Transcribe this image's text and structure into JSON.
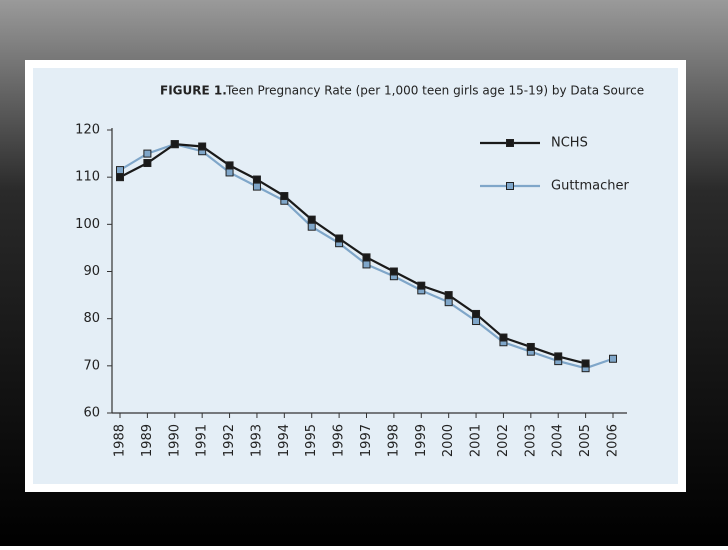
{
  "chart_data": {
    "type": "line",
    "figure_label": "FIGURE 1.",
    "title": "Teen Pregnancy Rate (per 1,000 teen girls age 15-19) by Data Source",
    "categories": [
      "1988",
      "1989",
      "1990",
      "1991",
      "1992",
      "1993",
      "1994",
      "1995",
      "1996",
      "1997",
      "1998",
      "1999",
      "2000",
      "2001",
      "2002",
      "2003",
      "2004",
      "2005",
      "2006"
    ],
    "series": [
      {
        "name": "NCHS",
        "color": "#1a1a1a",
        "marker_color": "#1a1a1a",
        "values": [
          110,
          113,
          117,
          116.5,
          112.5,
          109.5,
          106,
          101,
          97,
          93,
          90,
          87,
          85,
          81,
          76,
          74,
          72,
          70.5,
          null
        ]
      },
      {
        "name": "Guttmacher",
        "color": "#7fa6c9",
        "marker_color": "#7fa6c9",
        "values": [
          111.5,
          115,
          117,
          115.5,
          111,
          108,
          105,
          99.5,
          96,
          91.5,
          89,
          86,
          83.5,
          79.5,
          75,
          73,
          71,
          69.5,
          71.5
        ]
      }
    ],
    "ylim": [
      60,
      120
    ],
    "yticks": [
      60,
      70,
      80,
      90,
      100,
      110,
      120
    ],
    "grid": false,
    "legend": "upper right"
  }
}
